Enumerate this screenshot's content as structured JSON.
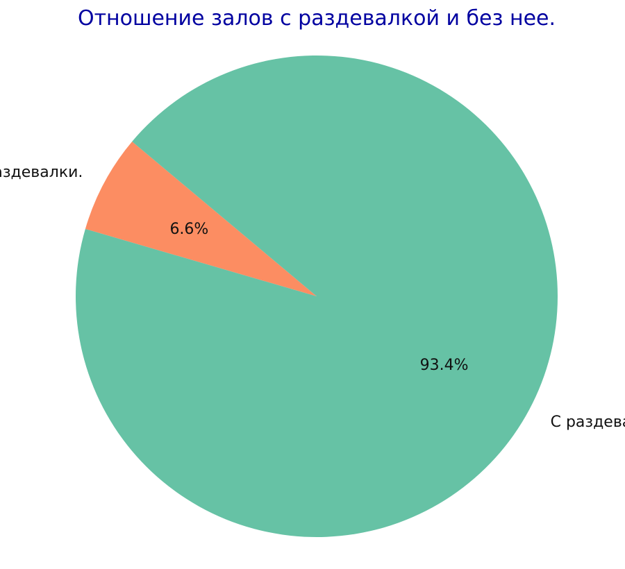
{
  "chart_data": {
    "type": "pie",
    "title": "Отношение залов с раздевалкой и без нее.",
    "title_color": "#0000a0",
    "slices": [
      {
        "label": "Без раздевалки.",
        "value": 6.6,
        "pct_label": "6.6%",
        "color": "#fc8d62"
      },
      {
        "label": "С раздевалкой.",
        "value": 93.4,
        "pct_label": "93.4%",
        "color": "#66c2a5"
      }
    ],
    "start_angle_deg": 140,
    "direction": "counterclockwise",
    "legend": "none"
  }
}
